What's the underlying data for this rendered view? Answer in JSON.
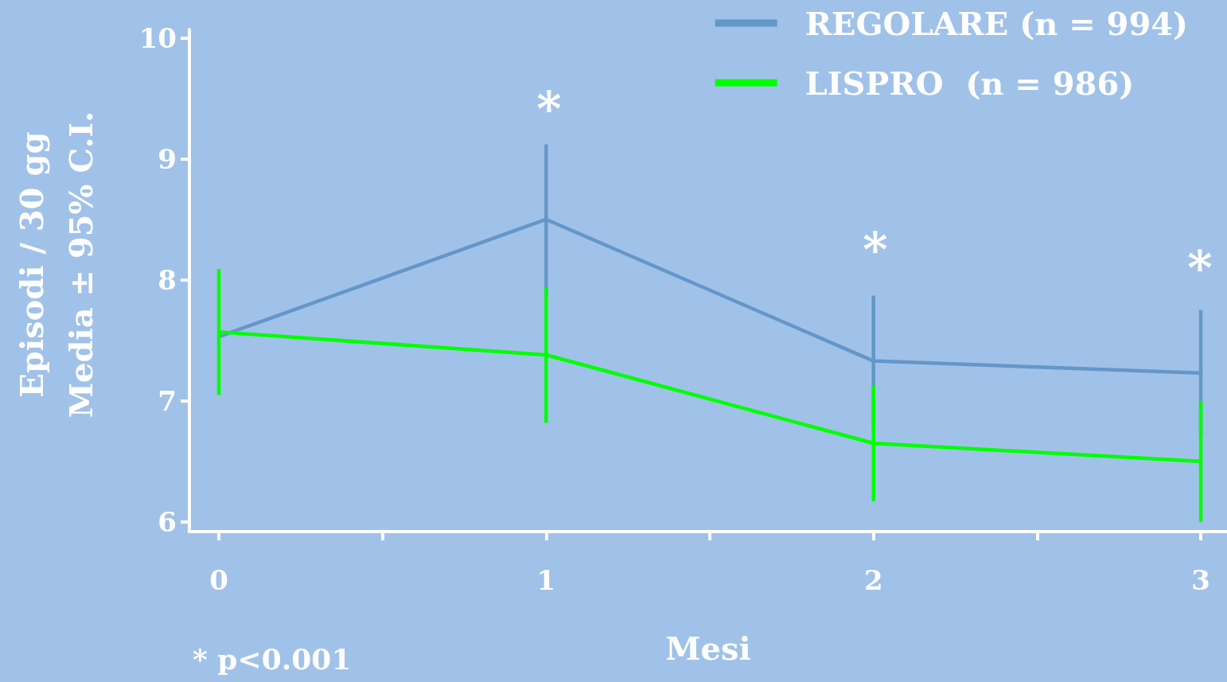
{
  "chart_data": {
    "type": "line",
    "xlabel": "Mesi",
    "ylabel": "Episodi / 30 gg\nMedia ± 95% C.I.",
    "x": [
      0,
      1,
      2,
      3
    ],
    "series": [
      {
        "name": "REGOLARE (n = 994)",
        "color": "#6496c8",
        "values": [
          7.53,
          8.5,
          7.33,
          7.23
        ],
        "errors": [
          null,
          0.62,
          0.54,
          0.52
        ]
      },
      {
        "name": "LISPRO  (n = 986)",
        "color": "#00ff00",
        "values": [
          7.57,
          7.38,
          6.65,
          6.5
        ],
        "errors": [
          0.52,
          0.56,
          0.48,
          0.5
        ]
      }
    ],
    "xlim": [
      -0.09,
      3.08
    ],
    "xticks": [
      0,
      {
        "value": 0.5,
        "label": null
      },
      1,
      {
        "value": 1.5,
        "label": null
      },
      2,
      {
        "value": 2.5,
        "label": null
      },
      3
    ],
    "ylim": [
      5.92,
      10.07
    ],
    "yticks": [
      6,
      7,
      8,
      9,
      10
    ],
    "grid": false,
    "legend": "top right",
    "marker": "none",
    "line_style": "solid",
    "annotations": [
      "*",
      "*",
      "*",
      "* p<0.001"
    ]
  }
}
